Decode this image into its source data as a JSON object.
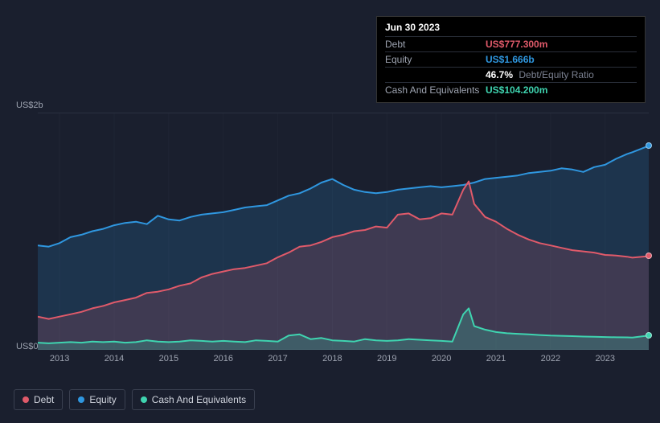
{
  "chart": {
    "type": "area",
    "background_color": "#1a1f2e",
    "grid_color": "#2a3040",
    "axis_label_color": "#9da3b0",
    "y_axis": {
      "max_label": "US$2b",
      "min_label": "US$0",
      "min": 0,
      "max": 2000
    },
    "x_axis": {
      "labels": [
        "2013",
        "2014",
        "2015",
        "2016",
        "2017",
        "2018",
        "2019",
        "2020",
        "2021",
        "2022",
        "2023"
      ],
      "min": 2012.6,
      "max": 2023.8
    },
    "series": {
      "equity": {
        "label": "Equity",
        "color": "#2f97e0",
        "fill_opacity": 0.18,
        "line_width": 2,
        "points": [
          [
            2012.6,
            880
          ],
          [
            2012.8,
            870
          ],
          [
            2013.0,
            900
          ],
          [
            2013.2,
            950
          ],
          [
            2013.4,
            970
          ],
          [
            2013.6,
            1000
          ],
          [
            2013.8,
            1020
          ],
          [
            2014.0,
            1050
          ],
          [
            2014.2,
            1070
          ],
          [
            2014.4,
            1080
          ],
          [
            2014.6,
            1060
          ],
          [
            2014.8,
            1130
          ],
          [
            2015.0,
            1100
          ],
          [
            2015.2,
            1090
          ],
          [
            2015.4,
            1120
          ],
          [
            2015.6,
            1140
          ],
          [
            2015.8,
            1150
          ],
          [
            2016.0,
            1160
          ],
          [
            2016.2,
            1180
          ],
          [
            2016.4,
            1200
          ],
          [
            2016.6,
            1210
          ],
          [
            2016.8,
            1220
          ],
          [
            2017.0,
            1260
          ],
          [
            2017.2,
            1300
          ],
          [
            2017.4,
            1320
          ],
          [
            2017.6,
            1360
          ],
          [
            2017.8,
            1410
          ],
          [
            2018.0,
            1440
          ],
          [
            2018.2,
            1390
          ],
          [
            2018.4,
            1350
          ],
          [
            2018.6,
            1330
          ],
          [
            2018.8,
            1320
          ],
          [
            2019.0,
            1330
          ],
          [
            2019.2,
            1350
          ],
          [
            2019.4,
            1360
          ],
          [
            2019.6,
            1370
          ],
          [
            2019.8,
            1380
          ],
          [
            2020.0,
            1370
          ],
          [
            2020.2,
            1380
          ],
          [
            2020.4,
            1390
          ],
          [
            2020.6,
            1410
          ],
          [
            2020.8,
            1440
          ],
          [
            2021.0,
            1450
          ],
          [
            2021.2,
            1460
          ],
          [
            2021.4,
            1470
          ],
          [
            2021.6,
            1490
          ],
          [
            2021.8,
            1500
          ],
          [
            2022.0,
            1510
          ],
          [
            2022.2,
            1530
          ],
          [
            2022.4,
            1520
          ],
          [
            2022.6,
            1500
          ],
          [
            2022.8,
            1540
          ],
          [
            2023.0,
            1560
          ],
          [
            2023.2,
            1610
          ],
          [
            2023.4,
            1650
          ],
          [
            2023.5,
            1666
          ],
          [
            2023.8,
            1720
          ]
        ]
      },
      "debt": {
        "label": "Debt",
        "color": "#e05a6a",
        "fill_opacity": 0.18,
        "line_width": 2,
        "points": [
          [
            2012.6,
            280
          ],
          [
            2012.8,
            260
          ],
          [
            2013.0,
            280
          ],
          [
            2013.2,
            300
          ],
          [
            2013.4,
            320
          ],
          [
            2013.6,
            350
          ],
          [
            2013.8,
            370
          ],
          [
            2014.0,
            400
          ],
          [
            2014.2,
            420
          ],
          [
            2014.4,
            440
          ],
          [
            2014.6,
            480
          ],
          [
            2014.8,
            490
          ],
          [
            2015.0,
            510
          ],
          [
            2015.2,
            540
          ],
          [
            2015.4,
            560
          ],
          [
            2015.6,
            610
          ],
          [
            2015.8,
            640
          ],
          [
            2016.0,
            660
          ],
          [
            2016.2,
            680
          ],
          [
            2016.4,
            690
          ],
          [
            2016.6,
            710
          ],
          [
            2016.8,
            730
          ],
          [
            2017.0,
            780
          ],
          [
            2017.2,
            820
          ],
          [
            2017.4,
            870
          ],
          [
            2017.6,
            880
          ],
          [
            2017.8,
            910
          ],
          [
            2018.0,
            950
          ],
          [
            2018.2,
            970
          ],
          [
            2018.4,
            1000
          ],
          [
            2018.6,
            1010
          ],
          [
            2018.8,
            1040
          ],
          [
            2019.0,
            1030
          ],
          [
            2019.2,
            1140
          ],
          [
            2019.4,
            1150
          ],
          [
            2019.6,
            1100
          ],
          [
            2019.8,
            1110
          ],
          [
            2020.0,
            1150
          ],
          [
            2020.2,
            1140
          ],
          [
            2020.4,
            1350
          ],
          [
            2020.5,
            1420
          ],
          [
            2020.6,
            1230
          ],
          [
            2020.8,
            1120
          ],
          [
            2021.0,
            1080
          ],
          [
            2021.2,
            1020
          ],
          [
            2021.4,
            970
          ],
          [
            2021.6,
            930
          ],
          [
            2021.8,
            900
          ],
          [
            2022.0,
            880
          ],
          [
            2022.2,
            860
          ],
          [
            2022.4,
            840
          ],
          [
            2022.6,
            830
          ],
          [
            2022.8,
            820
          ],
          [
            2023.0,
            800
          ],
          [
            2023.2,
            795
          ],
          [
            2023.4,
            785
          ],
          [
            2023.5,
            777
          ],
          [
            2023.8,
            790
          ]
        ]
      },
      "cash": {
        "label": "Cash And Equivalents",
        "color": "#3fd4b0",
        "fill_opacity": 0.22,
        "line_width": 2,
        "points": [
          [
            2012.6,
            60
          ],
          [
            2012.8,
            55
          ],
          [
            2013.0,
            60
          ],
          [
            2013.2,
            65
          ],
          [
            2013.4,
            60
          ],
          [
            2013.6,
            70
          ],
          [
            2013.8,
            65
          ],
          [
            2014.0,
            70
          ],
          [
            2014.2,
            60
          ],
          [
            2014.4,
            65
          ],
          [
            2014.6,
            80
          ],
          [
            2014.8,
            70
          ],
          [
            2015.0,
            65
          ],
          [
            2015.2,
            70
          ],
          [
            2015.4,
            80
          ],
          [
            2015.6,
            75
          ],
          [
            2015.8,
            70
          ],
          [
            2016.0,
            75
          ],
          [
            2016.2,
            70
          ],
          [
            2016.4,
            65
          ],
          [
            2016.6,
            80
          ],
          [
            2016.8,
            75
          ],
          [
            2017.0,
            70
          ],
          [
            2017.2,
            120
          ],
          [
            2017.4,
            130
          ],
          [
            2017.6,
            90
          ],
          [
            2017.8,
            100
          ],
          [
            2018.0,
            80
          ],
          [
            2018.2,
            75
          ],
          [
            2018.4,
            70
          ],
          [
            2018.6,
            90
          ],
          [
            2018.8,
            80
          ],
          [
            2019.0,
            75
          ],
          [
            2019.2,
            80
          ],
          [
            2019.4,
            90
          ],
          [
            2019.6,
            85
          ],
          [
            2019.8,
            80
          ],
          [
            2020.0,
            75
          ],
          [
            2020.2,
            70
          ],
          [
            2020.4,
            300
          ],
          [
            2020.5,
            350
          ],
          [
            2020.6,
            200
          ],
          [
            2020.8,
            170
          ],
          [
            2021.0,
            150
          ],
          [
            2021.2,
            140
          ],
          [
            2021.4,
            135
          ],
          [
            2021.6,
            130
          ],
          [
            2021.8,
            125
          ],
          [
            2022.0,
            120
          ],
          [
            2022.2,
            118
          ],
          [
            2022.4,
            115
          ],
          [
            2022.6,
            112
          ],
          [
            2022.8,
            110
          ],
          [
            2023.0,
            108
          ],
          [
            2023.2,
            106
          ],
          [
            2023.4,
            105
          ],
          [
            2023.5,
            104
          ],
          [
            2023.8,
            120
          ]
        ]
      }
    }
  },
  "tooltip": {
    "date": "Jun 30 2023",
    "rows": [
      {
        "label": "Debt",
        "value": "US$777.300m",
        "value_color": "#e05a6a"
      },
      {
        "label": "Equity",
        "value": "US$1.666b",
        "value_color": "#2f97e0"
      },
      {
        "label": "",
        "value": "46.7%",
        "value_color": "#ffffff",
        "extra": "Debt/Equity Ratio"
      },
      {
        "label": "Cash And Equivalents",
        "value": "US$104.200m",
        "value_color": "#3fd4b0"
      }
    ]
  },
  "legend": [
    {
      "label": "Debt",
      "color": "#e05a6a"
    },
    {
      "label": "Equity",
      "color": "#2f97e0"
    },
    {
      "label": "Cash And Equivalents",
      "color": "#3fd4b0"
    }
  ]
}
